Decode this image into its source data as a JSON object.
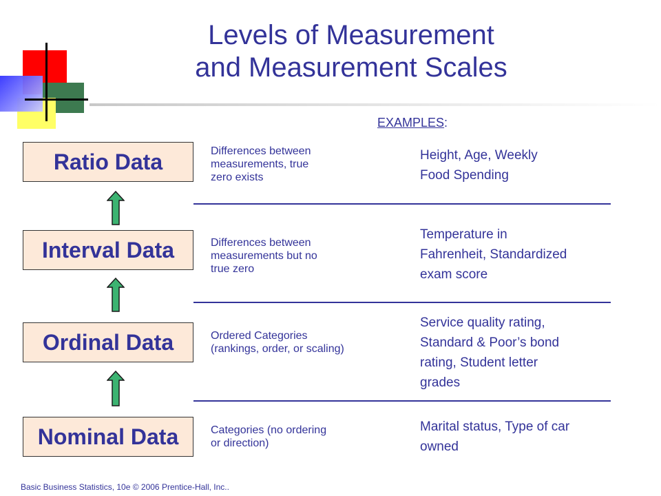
{
  "title": {
    "line1": "Levels of Measurement",
    "line2": "and Measurement Scales"
  },
  "examples_header": {
    "label": "EXAMPLES",
    "colon": ":"
  },
  "levels": [
    {
      "name": "Ratio Data",
      "description": [
        "Differences between",
        "measurements, true",
        "zero exists"
      ],
      "examples": [
        "Height, Age, Weekly",
        "Food Spending"
      ]
    },
    {
      "name": "Interval Data",
      "description": [
        "Differences between",
        "measurements but no",
        "true zero"
      ],
      "examples": [
        "Temperature in",
        "Fahrenheit, Standardized",
        "exam score"
      ]
    },
    {
      "name": "Ordinal Data",
      "description": [
        "Ordered Categories",
        "(rankings, order, or scaling)"
      ],
      "examples": [
        "Service quality rating,",
        "Standard & Poor’s bond",
        "rating, Student letter",
        "grades"
      ]
    },
    {
      "name": "Nominal Data",
      "description": [
        "Categories (no  ordering",
        "or direction)"
      ],
      "examples": [
        "Marital status, Type of car",
        "owned"
      ]
    }
  ],
  "footer": "Basic Business Statistics, 10e © 2006 Prentice-Hall, Inc..",
  "colors": {
    "text": "#333399",
    "box_fill": "#fde9d9",
    "arrow_fill": "#3cb371"
  }
}
